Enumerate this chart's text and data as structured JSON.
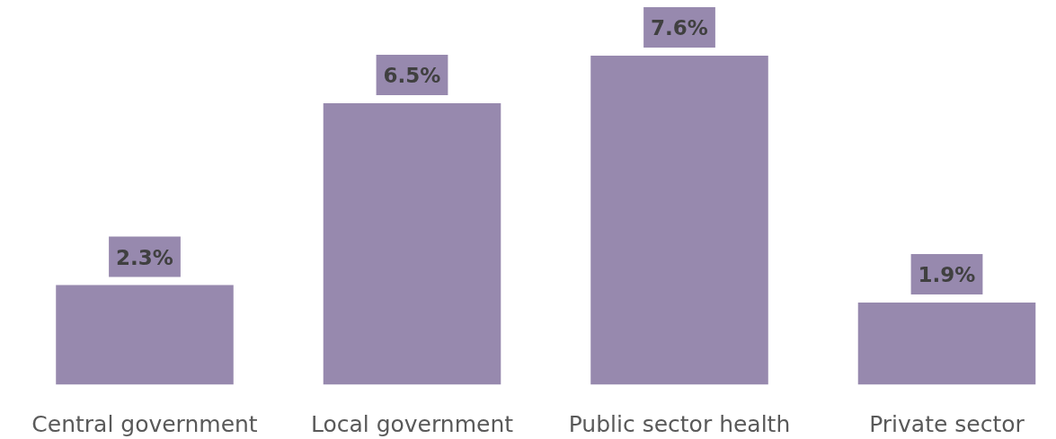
{
  "chart_data": {
    "type": "bar",
    "categories": [
      "Central government",
      "Local government",
      "Public sector health",
      "Private sector"
    ],
    "values": [
      2.3,
      6.5,
      7.6,
      1.9
    ],
    "value_labels": [
      "2.3%",
      "6.5%",
      "7.6%",
      "1.9%"
    ],
    "color": "#9789ae",
    "grid": false
  }
}
